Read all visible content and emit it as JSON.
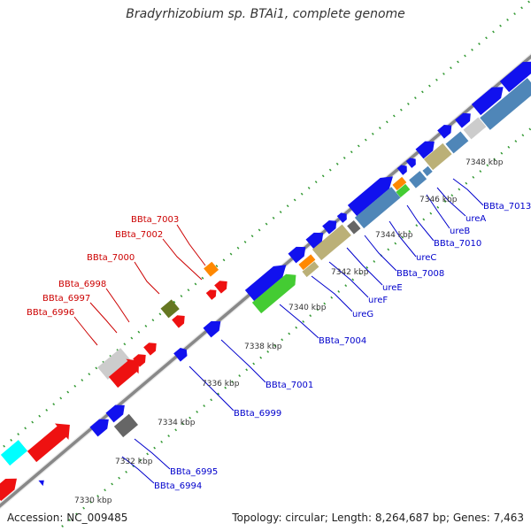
{
  "title": "Bradyrhizobium sp. BTAi1, complete genome",
  "accession": "Accession: NC_009485",
  "topology": "Topology: circular; Length: 8,264,687 bp; Genes: 7,463",
  "kbp_ticks": [
    "7330 kbp",
    "7332 kbp",
    "7334 kbp",
    "7336 kbp",
    "7338 kbp",
    "7340 kbp",
    "7342 kbp",
    "7344 kbp",
    "7346 kbp",
    "7348 kbp"
  ],
  "colors": {
    "red": "#ee1111",
    "blue": "#1111ee",
    "green": "#44cc33",
    "olive": "#667722",
    "orange": "#ff8800",
    "khaki": "#bbb077",
    "steel": "#4f86b8",
    "gray": "#bbbbbb",
    "darkgray": "#666666",
    "cyan": "#00ffff",
    "track": "#8a8a8a",
    "dots": "#339933",
    "label_red": "#cc0000",
    "label_blue": "#0000cc"
  },
  "labels": {
    "upper": [
      {
        "text": "BBta_7003",
        "kind": "red"
      },
      {
        "text": "BBta_7002",
        "kind": "red"
      },
      {
        "text": "BBta_7000",
        "kind": "red"
      },
      {
        "text": "BBta_6998",
        "kind": "red"
      },
      {
        "text": "BBta_6997",
        "kind": "red"
      },
      {
        "text": "BBta_6996",
        "kind": "red"
      }
    ],
    "lower": [
      {
        "text": "BBta_7013",
        "kind": "blue"
      },
      {
        "text": "ureA",
        "kind": "blue"
      },
      {
        "text": "ureB",
        "kind": "blue"
      },
      {
        "text": "BBta_7010",
        "kind": "blue"
      },
      {
        "text": "ureC",
        "kind": "blue"
      },
      {
        "text": "BBta_7008",
        "kind": "blue"
      },
      {
        "text": "ureE",
        "kind": "blue"
      },
      {
        "text": "ureF",
        "kind": "blue"
      },
      {
        "text": "ureG",
        "kind": "blue"
      },
      {
        "text": "BBta_7004",
        "kind": "blue"
      },
      {
        "text": "BBta_7001",
        "kind": "blue"
      },
      {
        "text": "BBta_6999",
        "kind": "blue"
      },
      {
        "text": "BBta_6995",
        "kind": "blue"
      },
      {
        "text": "BBta_6994",
        "kind": "blue"
      }
    ]
  }
}
